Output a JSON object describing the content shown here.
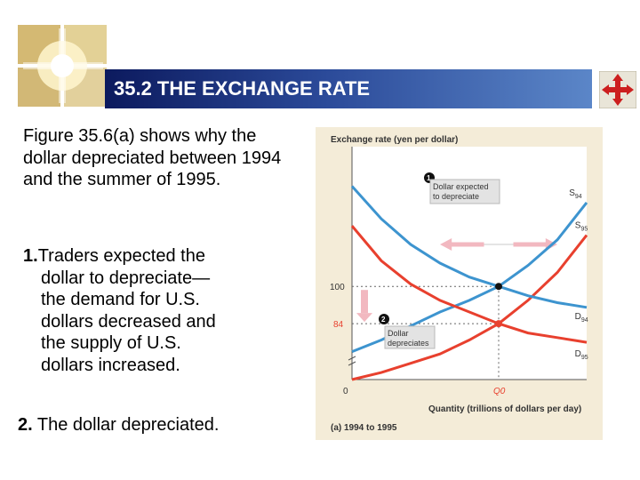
{
  "slide": {
    "title": "35.2 THE EXCHANGE RATE",
    "intro": "Figure 35.6(a) shows why the dollar depreciated between 1994 and the summer of 1995.",
    "step1_num": "1.",
    "step1_first": "Traders expected the",
    "step1_rest": [
      "dollar to depreciate—",
      "the demand for U.S.",
      "dollars decreased and",
      "the supply of U.S.",
      "dollars increased."
    ],
    "step2_num": "2.",
    "step2_text": " The dollar depreciated."
  },
  "icons": {
    "logo": "decorative-logo-icon",
    "nav": "navigation-cross-icon"
  },
  "colors": {
    "title_bar_start": "#0c1a5e",
    "title_bar_end": "#5b86c8",
    "figure_bg": "#f4ecd8",
    "plot_bg": "#ffffff",
    "blue_curves": "#3d94cf",
    "red_curves": "#e8402e",
    "shift_arrow": "#f2b8c0",
    "nav_icon": "#cc1f1f"
  },
  "chart_data": {
    "type": "line",
    "ylabel": "Exchange rate (yen per dollar)",
    "xlabel": "Quantity (trillions of dollars per day)",
    "caption": "(a) 1994 to 1995",
    "x_ticks": [
      "0",
      "Q0"
    ],
    "y_ticks": [
      "100",
      "84"
    ],
    "x_data": [
      0,
      20,
      40,
      60,
      80,
      100,
      120,
      140,
      160
    ],
    "series": [
      {
        "name": "S94",
        "color": "#3d94cf",
        "label": "S",
        "sub": "94",
        "values": [
          72,
          77,
          83,
          89,
          94,
          100,
          109,
          120,
          136
        ]
      },
      {
        "name": "S95",
        "color": "#e8402e",
        "label": "S",
        "sub": "95",
        "values": [
          60,
          63,
          67,
          71,
          77,
          84,
          94,
          106,
          122
        ]
      },
      {
        "name": "D94",
        "color": "#3d94cf",
        "label": "D",
        "sub": "94",
        "values": [
          143,
          129,
          118,
          110,
          104,
          100,
          96,
          93,
          91
        ]
      },
      {
        "name": "D95",
        "color": "#e8402e",
        "label": "D",
        "sub": "95",
        "values": [
          126,
          111,
          101,
          94,
          89,
          84,
          80,
          78,
          76
        ]
      }
    ],
    "equilibria": [
      {
        "name": "1994",
        "x": 100,
        "y": 100,
        "color": "#111111"
      },
      {
        "name": "1995",
        "x": 100,
        "y": 84,
        "color": "#e8402e"
      }
    ],
    "annotations": [
      {
        "num": "1",
        "lines": [
          "Dollar expected",
          "to depreciate"
        ]
      },
      {
        "num": "2",
        "lines": [
          "Dollar",
          "depreciates"
        ]
      }
    ]
  }
}
